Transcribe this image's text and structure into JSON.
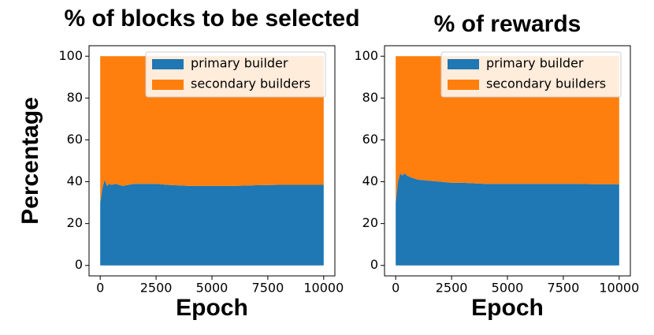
{
  "chart_data": [
    {
      "type": "stacked-area",
      "title": "% of blocks to be selected",
      "xlabel": "Epoch",
      "ylabel": "Percentage",
      "x": [
        0,
        100,
        200,
        300,
        400,
        500,
        700,
        1000,
        1500,
        2000,
        2500,
        3000,
        4000,
        5000,
        6000,
        7000,
        8000,
        9000,
        10000
      ],
      "series": [
        {
          "name": "primary builder",
          "color": "#1f77b4",
          "values": [
            30,
            37,
            41,
            38,
            39,
            38.5,
            39,
            38,
            39,
            39,
            39,
            38.5,
            38,
            38,
            38,
            38.3,
            38.5,
            38.5,
            38.5
          ]
        },
        {
          "name": "secondary builders",
          "color": "#ff7f0e",
          "values": [
            70,
            63,
            59,
            62,
            61,
            61.5,
            61,
            62,
            61,
            61,
            61,
            61.5,
            62,
            62,
            62,
            61.7,
            61.5,
            61.5,
            61.5
          ]
        }
      ],
      "xlim": [
        -500,
        10500
      ],
      "ylim": [
        -5,
        105
      ],
      "xticks": [
        0,
        2500,
        5000,
        7500,
        10000
      ],
      "yticks": [
        0,
        20,
        40,
        60,
        80,
        100
      ],
      "legend": "upper right"
    },
    {
      "type": "stacked-area",
      "title": "% of rewards",
      "xlabel": "Epoch",
      "x": [
        0,
        100,
        200,
        300,
        400,
        500,
        700,
        1000,
        1500,
        2000,
        2500,
        3000,
        4000,
        5000,
        6000,
        7000,
        8000,
        9000,
        10000
      ],
      "series": [
        {
          "name": "primary builder",
          "color": "#1f77b4",
          "values": [
            30,
            40,
            44,
            43,
            44,
            43,
            42,
            41,
            40.5,
            40,
            39.5,
            39.5,
            39,
            39,
            39,
            39,
            39,
            38.8,
            38.8
          ]
        },
        {
          "name": "secondary builders",
          "color": "#ff7f0e",
          "values": [
            70,
            60,
            56,
            57,
            56,
            57,
            58,
            59,
            59.5,
            60,
            60.5,
            60.5,
            61,
            61,
            61,
            61,
            61,
            61.2,
            61.2
          ]
        }
      ],
      "xlim": [
        -500,
        10500
      ],
      "ylim": [
        -5,
        105
      ],
      "xticks": [
        0,
        2500,
        5000,
        7500,
        10000
      ],
      "yticks": [
        0,
        20,
        40,
        60,
        80,
        100
      ],
      "legend": "upper right"
    }
  ]
}
